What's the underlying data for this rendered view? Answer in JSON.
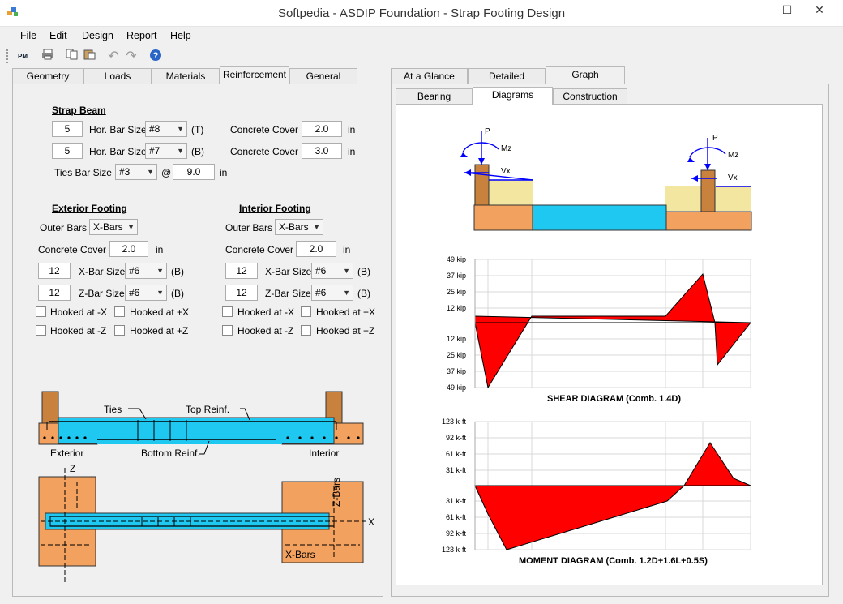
{
  "window": {
    "title": "Softpedia - ASDIP Foundation - Strap Footing Design",
    "minimize": "—",
    "maximize": "☐",
    "close": "✕"
  },
  "menu": [
    "File",
    "Edit",
    "Design",
    "Report",
    "Help"
  ],
  "toolbar": {
    "pm_label": "PM"
  },
  "left_tabs": [
    "Geometry",
    "Loads",
    "Materials",
    "Reinforcement",
    "General"
  ],
  "right_tabs": [
    "At a Glance",
    "Detailed",
    "Graph"
  ],
  "graph_tabs": [
    "Bearing",
    "Diagrams",
    "Construction"
  ],
  "strap_beam": {
    "heading": "Strap Beam",
    "top_count": "5",
    "top_label": "Hor. Bar Size",
    "top_size": "#8",
    "top_pos": "(T)",
    "top_cover_label": "Concrete Cover",
    "top_cover": "2.0",
    "top_cover_unit": "in",
    "bot_count": "5",
    "bot_label": "Hor. Bar Size",
    "bot_size": "#7",
    "bot_pos": "(B)",
    "bot_cover_label": "Concrete Cover",
    "bot_cover": "3.0",
    "bot_cover_unit": "in",
    "ties_label": "Ties Bar Size",
    "ties_size": "#3",
    "at": "@",
    "ties_spacing": "9.0",
    "ties_unit": "in"
  },
  "exterior": {
    "heading": "Exterior Footing",
    "outer_label": "Outer Bars",
    "outer_value": "X-Bars",
    "cover_label": "Concrete Cover",
    "cover": "2.0",
    "cover_unit": "in",
    "x_count": "12",
    "x_label": "X-Bar Size",
    "x_size": "#6",
    "x_pos": "(B)",
    "z_count": "12",
    "z_label": "Z-Bar Size",
    "z_size": "#6",
    "z_pos": "(B)",
    "hook_mx": "Hooked at -X",
    "hook_px": "Hooked at +X",
    "hook_mz": "Hooked at -Z",
    "hook_pz": "Hooked at +Z"
  },
  "interior": {
    "heading": "Interior Footing",
    "outer_label": "Outer Bars",
    "outer_value": "X-Bars",
    "cover_label": "Concrete Cover",
    "cover": "2.0",
    "cover_unit": "in",
    "x_count": "12",
    "x_label": "X-Bar Size",
    "x_size": "#6",
    "x_pos": "(B)",
    "z_count": "12",
    "z_label": "Z-Bar Size",
    "z_size": "#6",
    "z_pos": "(B)",
    "hook_mx": "Hooked at -X",
    "hook_px": "Hooked at +X",
    "hook_mz": "Hooked at -Z",
    "hook_pz": "Hooked at +Z"
  },
  "section_sketch": {
    "ties": "Ties",
    "top_reinf": "Top Reinf.",
    "bottom_reinf": "Bottom Reinf.",
    "exterior": "Exterior",
    "interior": "Interior"
  },
  "plan_sketch": {
    "z": "Z",
    "x": "X",
    "x_bars": "X-Bars",
    "z_bars": "Z-Bars"
  },
  "elevation": {
    "p": "P",
    "mz": "Mz",
    "vx": "Vx"
  },
  "shear": {
    "title": "SHEAR DIAGRAM (Comb. 1.4D)",
    "ticks": [
      "49 kip",
      "37 kip",
      "25 kip",
      "12 kip",
      "12 kip",
      "25 kip",
      "37 kip",
      "49 kip"
    ]
  },
  "moment": {
    "title": "MOMENT DIAGRAM (Comb. 1.2D+1.6L+0.5S)",
    "ticks": [
      "123 k-ft",
      "92 k-ft",
      "61 k-ft",
      "31 k-ft",
      "31 k-ft",
      "61 k-ft",
      "92 k-ft",
      "123 k-ft"
    ]
  },
  "colors": {
    "footing": "#f2a15e",
    "beam": "#1ec8f0",
    "soil": "#f2e6a0",
    "column": "#c9823e",
    "diagram": "#ff0000"
  }
}
